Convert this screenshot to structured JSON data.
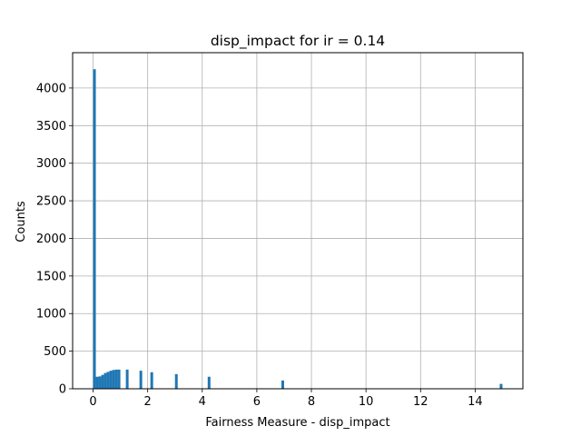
{
  "chart_data": {
    "type": "bar",
    "title": "disp_impact for ir = 0.14",
    "xlabel": "Fairness Measure - disp_impact",
    "ylabel": "Counts",
    "xlim": [
      -0.75,
      15.75
    ],
    "ylim": [
      0,
      4470
    ],
    "grid": true,
    "bar_color": "#1f77b4",
    "x_ticks": [
      0,
      2,
      4,
      6,
      8,
      10,
      12,
      14
    ],
    "y_ticks": [
      0,
      500,
      1000,
      1500,
      2000,
      2500,
      3000,
      3500,
      4000
    ],
    "bin_width": 0.1,
    "bars": [
      {
        "x": 0.05,
        "value": 4250
      },
      {
        "x": 0.15,
        "value": 160
      },
      {
        "x": 0.25,
        "value": 165
      },
      {
        "x": 0.35,
        "value": 185
      },
      {
        "x": 0.45,
        "value": 210
      },
      {
        "x": 0.55,
        "value": 225
      },
      {
        "x": 0.65,
        "value": 240
      },
      {
        "x": 0.75,
        "value": 250
      },
      {
        "x": 0.85,
        "value": 255
      },
      {
        "x": 0.95,
        "value": 255
      },
      {
        "x": 1.25,
        "value": 255
      },
      {
        "x": 1.75,
        "value": 240
      },
      {
        "x": 2.15,
        "value": 220
      },
      {
        "x": 3.05,
        "value": 195
      },
      {
        "x": 4.25,
        "value": 160
      },
      {
        "x": 6.95,
        "value": 110
      },
      {
        "x": 14.95,
        "value": 65
      }
    ]
  }
}
